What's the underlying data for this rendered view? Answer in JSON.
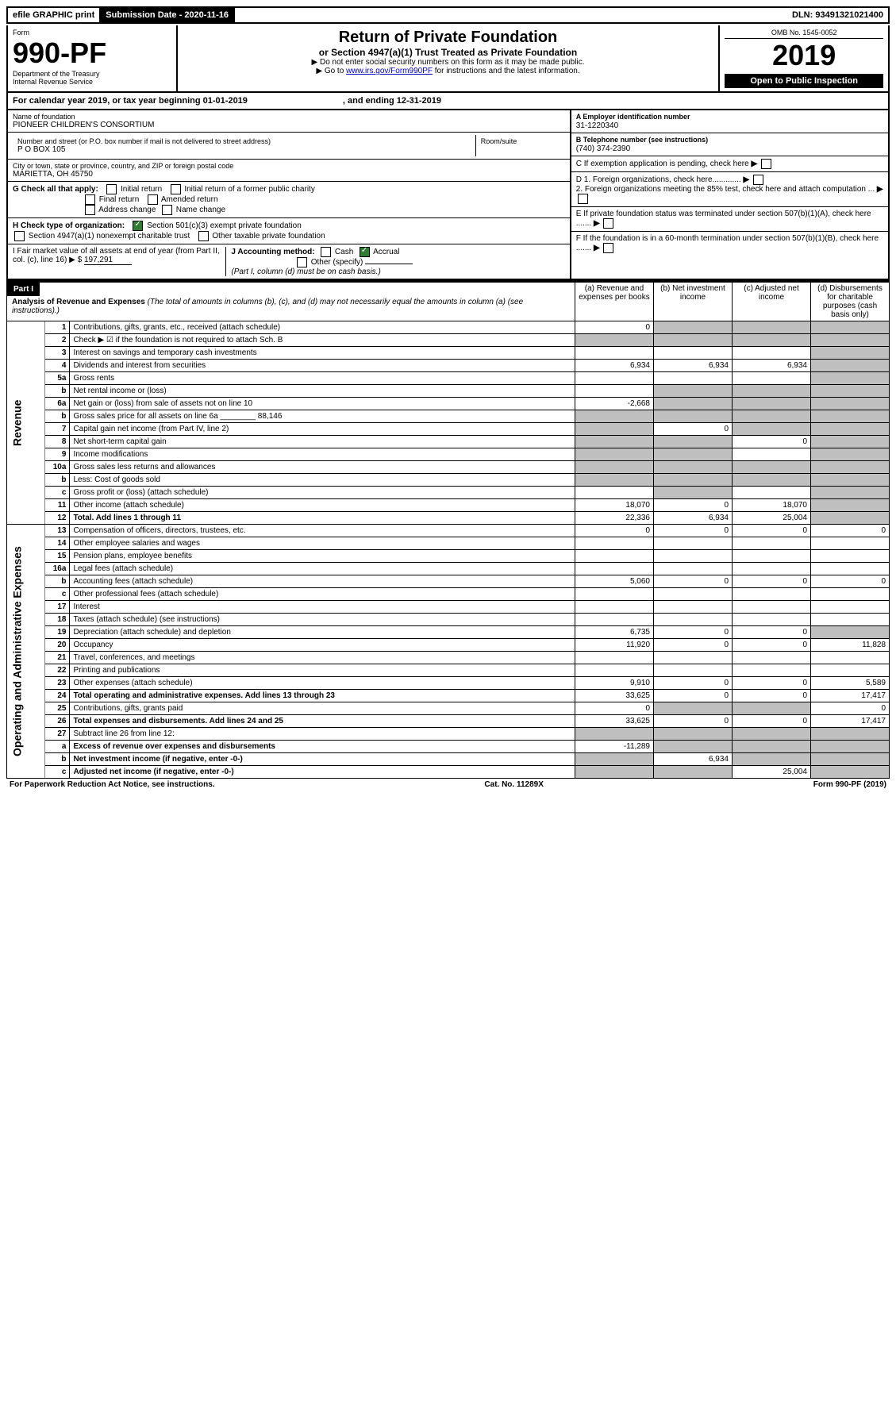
{
  "topbar": {
    "efile": "efile GRAPHIC print",
    "submission_label": "Submission Date - 2020-11-16",
    "dln": "DLN: 93491321021400"
  },
  "header": {
    "form_word": "Form",
    "form_number": "990-PF",
    "dept1": "Department of the Treasury",
    "dept2": "Internal Revenue Service",
    "title": "Return of Private Foundation",
    "subtitle": "or Section 4947(a)(1) Trust Treated as Private Foundation",
    "instr1": "▶ Do not enter social security numbers on this form as it may be made public.",
    "instr2_pre": "▶ Go to ",
    "instr2_link": "www.irs.gov/Form990PF",
    "instr2_post": " for instructions and the latest information.",
    "omb": "OMB No. 1545-0052",
    "year": "2019",
    "open": "Open to Public Inspection"
  },
  "calendar": {
    "line": "For calendar year 2019, or tax year beginning 01-01-2019",
    "ending": ", and ending 12-31-2019"
  },
  "foundation": {
    "name_label": "Name of foundation",
    "name": "PIONEER CHILDREN'S CONSORTIUM",
    "addr_label": "Number and street (or P.O. box number if mail is not delivered to street address)",
    "addr": "P O BOX 105",
    "room_label": "Room/suite",
    "city_label": "City or town, state or province, country, and ZIP or foreign postal code",
    "city": "MARIETTA, OH  45750",
    "ein_label": "A Employer identification number",
    "ein": "31-1220340",
    "tel_label": "B Telephone number (see instructions)",
    "tel": "(740) 374-2390",
    "c_label": "C If exemption application is pending, check here",
    "d1": "D 1. Foreign organizations, check here.............",
    "d2": "2. Foreign organizations meeting the 85% test, check here and attach computation ...",
    "e_label": "E  If private foundation status was terminated under section 507(b)(1)(A), check here .......",
    "f_label": "F  If the foundation is in a 60-month termination under section 507(b)(1)(B), check here ......."
  },
  "checks": {
    "g_label": "G Check all that apply:",
    "g_initial": "Initial return",
    "g_initial_former": "Initial return of a former public charity",
    "g_final": "Final return",
    "g_amended": "Amended return",
    "g_addr": "Address change",
    "g_name": "Name change",
    "h_label": "H Check type of organization:",
    "h_501c3": "Section 501(c)(3) exempt private foundation",
    "h_4947": "Section 4947(a)(1) nonexempt charitable trust",
    "h_other": "Other taxable private foundation",
    "i_label": "I Fair market value of all assets at end of year (from Part II, col. (c), line 16) ▶ $",
    "i_value": "197,291",
    "j_label": "J Accounting method:",
    "j_cash": "Cash",
    "j_accrual": "Accrual",
    "j_other": "Other (specify)",
    "j_note": "(Part I, column (d) must be on cash basis.)"
  },
  "part1": {
    "header": "Part I",
    "title": "Analysis of Revenue and Expenses",
    "title_note": "(The total of amounts in columns (b), (c), and (d) may not necessarily equal the amounts in column (a) (see instructions).)",
    "col_a": "(a)   Revenue and expenses per books",
    "col_b": "(b)  Net investment income",
    "col_c": "(c)  Adjusted net income",
    "col_d": "(d)  Disbursements for charitable purposes (cash basis only)"
  },
  "side": {
    "revenue": "Revenue",
    "expenses": "Operating and Administrative Expenses"
  },
  "rows": [
    {
      "n": "1",
      "desc": "Contributions, gifts, grants, etc., received (attach schedule)",
      "a": "0",
      "b": "",
      "c": "",
      "d": "",
      "sb": true,
      "sc": true,
      "sd": true
    },
    {
      "n": "2",
      "desc": "Check ▶ ☑ if the foundation is not required to attach Sch. B",
      "a": "",
      "b": "",
      "c": "",
      "d": "",
      "sa": true,
      "sb": true,
      "sc": true,
      "sd": true
    },
    {
      "n": "3",
      "desc": "Interest on savings and temporary cash investments",
      "a": "",
      "b": "",
      "c": "",
      "d": "",
      "sd": true
    },
    {
      "n": "4",
      "desc": "Dividends and interest from securities",
      "a": "6,934",
      "b": "6,934",
      "c": "6,934",
      "d": "",
      "sd": true
    },
    {
      "n": "5a",
      "desc": "Gross rents",
      "a": "",
      "b": "",
      "c": "",
      "d": "",
      "sd": true
    },
    {
      "n": "b",
      "desc": "Net rental income or (loss)",
      "a": "",
      "b": "",
      "c": "",
      "d": "",
      "sa2": true,
      "sb": true,
      "sc": true,
      "sd": true
    },
    {
      "n": "6a",
      "desc": "Net gain or (loss) from sale of assets not on line 10",
      "a": "-2,668",
      "b": "",
      "c": "",
      "d": "",
      "sb": true,
      "sc": true,
      "sd": true
    },
    {
      "n": "b",
      "desc": "Gross sales price for all assets on line 6a ________ 88,146",
      "a": "",
      "b": "",
      "c": "",
      "d": "",
      "sa": true,
      "sb": true,
      "sc": true,
      "sd": true
    },
    {
      "n": "7",
      "desc": "Capital gain net income (from Part IV, line 2)",
      "a": "",
      "b": "0",
      "c": "",
      "d": "",
      "sa": true,
      "sc": true,
      "sd": true
    },
    {
      "n": "8",
      "desc": "Net short-term capital gain",
      "a": "",
      "b": "",
      "c": "0",
      "d": "",
      "sa": true,
      "sb": true,
      "sd": true
    },
    {
      "n": "9",
      "desc": "Income modifications",
      "a": "",
      "b": "",
      "c": "",
      "d": "",
      "sa": true,
      "sb": true,
      "sd": true
    },
    {
      "n": "10a",
      "desc": "Gross sales less returns and allowances",
      "a": "",
      "b": "",
      "c": "",
      "d": "",
      "sa": true,
      "sb": true,
      "sc": true,
      "sd": true
    },
    {
      "n": "b",
      "desc": "Less: Cost of goods sold",
      "a": "",
      "b": "",
      "c": "",
      "d": "",
      "sa": true,
      "sb": true,
      "sc": true,
      "sd": true
    },
    {
      "n": "c",
      "desc": "Gross profit or (loss) (attach schedule)",
      "a": "",
      "b": "",
      "c": "",
      "d": "",
      "sb": true,
      "sd": true
    },
    {
      "n": "11",
      "desc": "Other income (attach schedule)",
      "a": "18,070",
      "b": "0",
      "c": "18,070",
      "d": "",
      "sd": true
    },
    {
      "n": "12",
      "desc": "Total. Add lines 1 through 11",
      "a": "22,336",
      "b": "6,934",
      "c": "25,004",
      "d": "",
      "sd": true,
      "bold": true
    },
    {
      "n": "13",
      "desc": "Compensation of officers, directors, trustees, etc.",
      "a": "0",
      "b": "0",
      "c": "0",
      "d": "0"
    },
    {
      "n": "14",
      "desc": "Other employee salaries and wages",
      "a": "",
      "b": "",
      "c": "",
      "d": ""
    },
    {
      "n": "15",
      "desc": "Pension plans, employee benefits",
      "a": "",
      "b": "",
      "c": "",
      "d": ""
    },
    {
      "n": "16a",
      "desc": "Legal fees (attach schedule)",
      "a": "",
      "b": "",
      "c": "",
      "d": ""
    },
    {
      "n": "b",
      "desc": "Accounting fees (attach schedule)",
      "a": "5,060",
      "b": "0",
      "c": "0",
      "d": "0"
    },
    {
      "n": "c",
      "desc": "Other professional fees (attach schedule)",
      "a": "",
      "b": "",
      "c": "",
      "d": ""
    },
    {
      "n": "17",
      "desc": "Interest",
      "a": "",
      "b": "",
      "c": "",
      "d": ""
    },
    {
      "n": "18",
      "desc": "Taxes (attach schedule) (see instructions)",
      "a": "",
      "b": "",
      "c": "",
      "d": ""
    },
    {
      "n": "19",
      "desc": "Depreciation (attach schedule) and depletion",
      "a": "6,735",
      "b": "0",
      "c": "0",
      "d": "",
      "sd": true
    },
    {
      "n": "20",
      "desc": "Occupancy",
      "a": "11,920",
      "b": "0",
      "c": "0",
      "d": "11,828"
    },
    {
      "n": "21",
      "desc": "Travel, conferences, and meetings",
      "a": "",
      "b": "",
      "c": "",
      "d": ""
    },
    {
      "n": "22",
      "desc": "Printing and publications",
      "a": "",
      "b": "",
      "c": "",
      "d": ""
    },
    {
      "n": "23",
      "desc": "Other expenses (attach schedule)",
      "a": "9,910",
      "b": "0",
      "c": "0",
      "d": "5,589"
    },
    {
      "n": "24",
      "desc": "Total operating and administrative expenses. Add lines 13 through 23",
      "a": "33,625",
      "b": "0",
      "c": "0",
      "d": "17,417",
      "bold": true
    },
    {
      "n": "25",
      "desc": "Contributions, gifts, grants paid",
      "a": "0",
      "b": "",
      "c": "",
      "d": "0",
      "sb": true,
      "sc": true
    },
    {
      "n": "26",
      "desc": "Total expenses and disbursements. Add lines 24 and 25",
      "a": "33,625",
      "b": "0",
      "c": "0",
      "d": "17,417",
      "bold": true
    },
    {
      "n": "27",
      "desc": "Subtract line 26 from line 12:",
      "a": "",
      "b": "",
      "c": "",
      "d": "",
      "sa": true,
      "sb": true,
      "sc": true,
      "sd": true
    },
    {
      "n": "a",
      "desc": "Excess of revenue over expenses and disbursements",
      "a": "-11,289",
      "b": "",
      "c": "",
      "d": "",
      "sb": true,
      "sc": true,
      "sd": true,
      "bold": true
    },
    {
      "n": "b",
      "desc": "Net investment income (if negative, enter -0-)",
      "a": "",
      "b": "6,934",
      "c": "",
      "d": "",
      "sa": true,
      "sc": true,
      "sd": true,
      "bold": true
    },
    {
      "n": "c",
      "desc": "Adjusted net income (if negative, enter -0-)",
      "a": "",
      "b": "",
      "c": "25,004",
      "d": "",
      "sa": true,
      "sb": true,
      "sd": true,
      "bold": true
    }
  ],
  "footer": {
    "pra": "For Paperwork Reduction Act Notice, see instructions.",
    "cat": "Cat. No. 11289X",
    "form": "Form 990-PF (2019)"
  }
}
